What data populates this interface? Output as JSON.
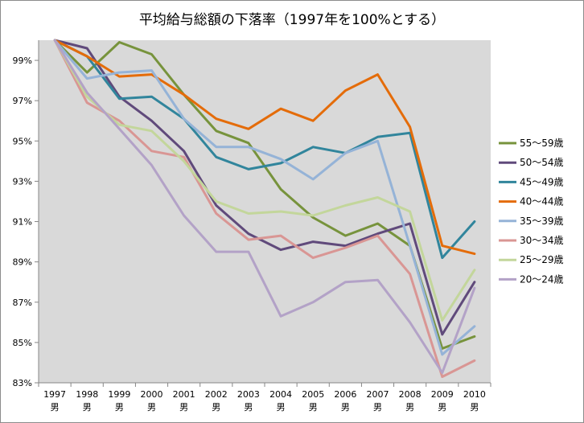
{
  "chart_data": {
    "type": "line",
    "title": "平均給与総額の下落率（1997年を100%とする）",
    "xlabel": "",
    "ylabel": "",
    "categories": [
      "1997\n男",
      "1998\n男",
      "1999\n男",
      "2000\n男",
      "2001\n男",
      "2002\n男",
      "2003\n男",
      "2004\n男",
      "2005\n男",
      "2006\n男",
      "2007\n男",
      "2008\n男",
      "2009\n男",
      "2010\n男"
    ],
    "ylim": [
      83,
      100
    ],
    "yticks": [
      "83%",
      "85%",
      "87%",
      "89%",
      "91%",
      "93%",
      "95%",
      "97%",
      "99%"
    ],
    "grid": false,
    "legend_position": "right",
    "series": [
      {
        "name": "55～59歳",
        "color": "#77933c",
        "values": [
          100,
          98.4,
          99.9,
          99.3,
          97.3,
          95.5,
          94.9,
          92.6,
          91.2,
          90.3,
          90.9,
          89.8,
          84.7,
          85.3
        ]
      },
      {
        "name": "50～54歳",
        "color": "#604a7b",
        "values": [
          100,
          99.6,
          97.2,
          96.0,
          94.5,
          91.8,
          90.4,
          89.6,
          90.0,
          89.8,
          90.4,
          90.9,
          85.4,
          88.0
        ]
      },
      {
        "name": "45～49歳",
        "color": "#31859c",
        "values": [
          100,
          99.2,
          97.1,
          97.2,
          96.1,
          94.2,
          93.6,
          93.9,
          94.7,
          94.4,
          95.2,
          95.4,
          89.2,
          91.0
        ]
      },
      {
        "name": "40～44歳",
        "color": "#e46c0a",
        "values": [
          100,
          99.2,
          98.2,
          98.3,
          97.3,
          96.1,
          95.6,
          96.6,
          96.0,
          97.5,
          98.3,
          95.7,
          89.8,
          89.4
        ]
      },
      {
        "name": "35～39歳",
        "color": "#95b3d7",
        "values": [
          100,
          98.1,
          98.4,
          98.5,
          96.1,
          94.7,
          94.7,
          94.1,
          93.1,
          94.4,
          95.0,
          89.8,
          84.4,
          85.8
        ]
      },
      {
        "name": "30～34歳",
        "color": "#d99694",
        "values": [
          100,
          96.9,
          96.0,
          94.5,
          94.2,
          91.4,
          90.1,
          90.3,
          89.2,
          89.7,
          90.3,
          88.4,
          83.3,
          84.1
        ]
      },
      {
        "name": "25～29歳",
        "color": "#c3d69b",
        "values": [
          100,
          97.2,
          95.8,
          95.5,
          94.0,
          92.0,
          91.4,
          91.5,
          91.3,
          91.8,
          92.2,
          91.5,
          86.1,
          88.6
        ]
      },
      {
        "name": "20～24歳",
        "color": "#b3a2c7",
        "values": [
          100,
          97.4,
          95.6,
          93.8,
          91.3,
          89.5,
          89.5,
          86.3,
          87.0,
          88.0,
          88.1,
          86.0,
          83.5,
          87.7
        ]
      }
    ]
  }
}
